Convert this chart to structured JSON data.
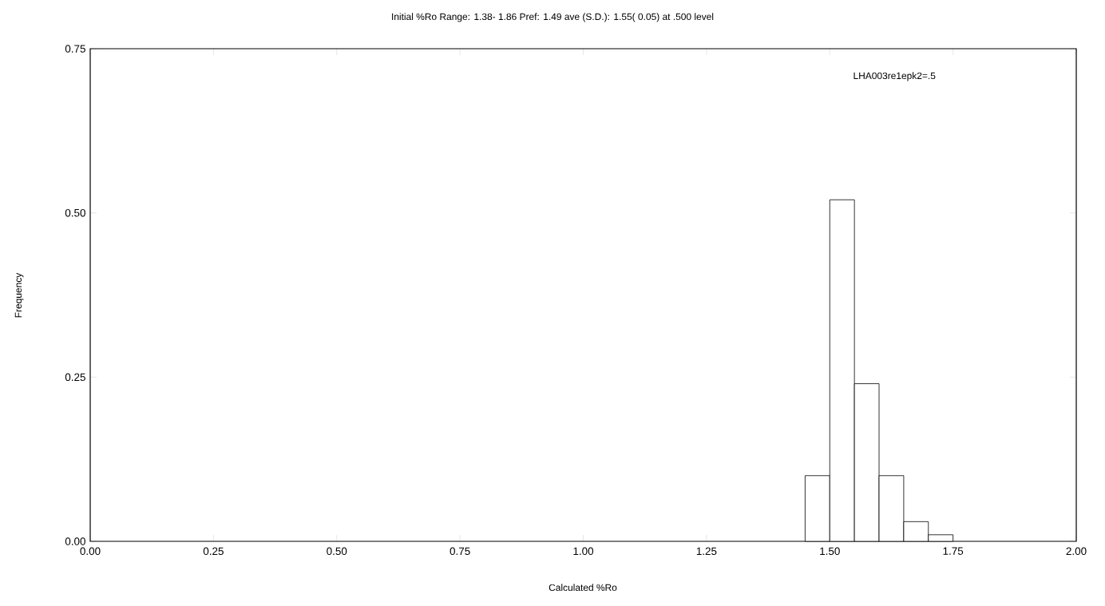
{
  "chart_data": {
    "type": "histogram",
    "title": "Initial %Ro Range:  1.38- 1.86 Pref:  1.49 ave (S.D.):  1.55( 0.05) at .500 level",
    "xlabel": "Calculated %Ro",
    "ylabel": "Frequency",
    "annotations": [
      "LHA003re1epk2=.5"
    ],
    "bins": [
      1.45,
      1.5,
      1.55,
      1.6,
      1.65,
      1.7,
      1.75
    ],
    "values": [
      0.1,
      0.52,
      0.24,
      0.1,
      0.03,
      0.01
    ],
    "color": "#ffffff",
    "xlim": [
      0,
      2
    ],
    "ylim": [
      0,
      0.75
    ],
    "xticks": [
      {
        "value": 0,
        "label": "0.00"
      },
      {
        "value": 0.25,
        "label": "0.25"
      },
      {
        "value": 0.5,
        "label": "0.50"
      },
      {
        "value": 0.75,
        "label": "0.75"
      },
      {
        "value": 1,
        "label": "1.00"
      },
      {
        "value": 1.25,
        "label": "1.25"
      },
      {
        "value": 1.5,
        "label": "1.50"
      },
      {
        "value": 1.75,
        "label": "1.75"
      },
      {
        "value": 2,
        "label": "2.00"
      }
    ],
    "yticks": [
      {
        "value": 0,
        "label": "0.00"
      },
      {
        "value": 0.25,
        "label": "0.25"
      },
      {
        "value": 0.5,
        "label": "0.50"
      },
      {
        "value": 0.75,
        "label": "0.75"
      }
    ],
    "grid": false
  }
}
